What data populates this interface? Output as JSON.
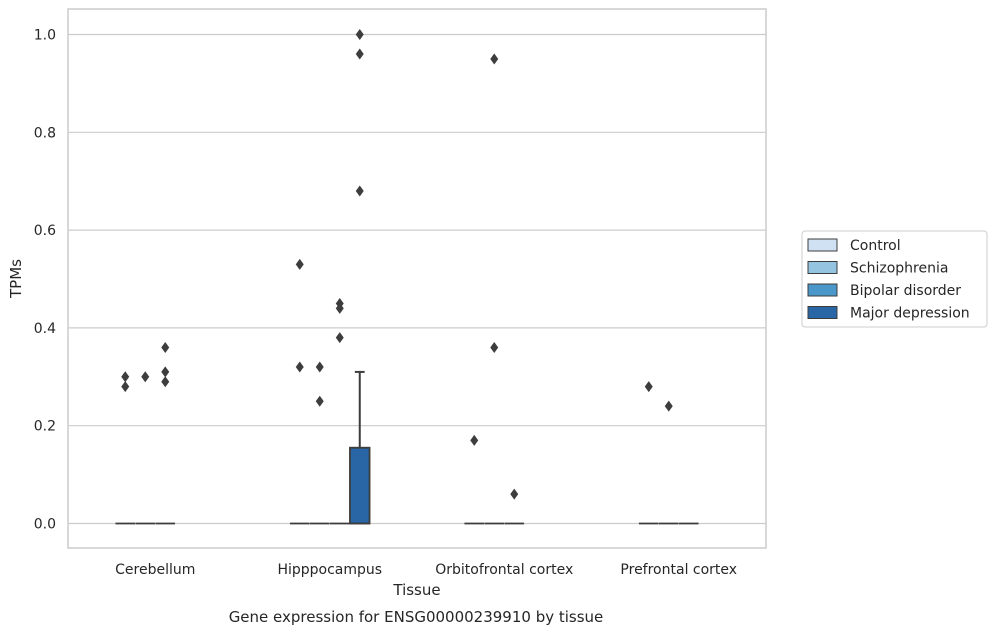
{
  "chart_data": {
    "type": "box",
    "xlabel": "Tissue",
    "ylabel": "TPMs",
    "caption": "Gene expression for ENSG00000239910 by tissue",
    "ylim": [
      -0.05,
      1.05
    ],
    "yticks": [
      0.0,
      0.2,
      0.4,
      0.6,
      0.8,
      1.0
    ],
    "ytick_labels": [
      "0.0",
      "0.2",
      "0.4",
      "0.6",
      "0.8",
      "1.0"
    ],
    "grid": true,
    "legend_position": "right",
    "categories": [
      "Cerebellum",
      "Hipppocampus",
      "Orbitofrontal cortex",
      "Prefrontal cortex"
    ],
    "hue_order": [
      "Control",
      "Schizophrenia",
      "Bipolar disorder",
      "Major depression"
    ],
    "colors": {
      "Control": "#cfe1f2",
      "Schizophrenia": "#94c4df",
      "Bipolar disorder": "#4a98c9",
      "Major depression": "#2866a6"
    },
    "boxes": [
      {
        "category": "Cerebellum",
        "group": "Control",
        "q1": 0,
        "median": 0,
        "q3": 0,
        "whisker_low": 0,
        "whisker_high": 0,
        "outliers": [
          0.3,
          0.28
        ]
      },
      {
        "category": "Cerebellum",
        "group": "Schizophrenia",
        "q1": 0,
        "median": 0,
        "q3": 0,
        "whisker_low": 0,
        "whisker_high": 0,
        "outliers": [
          0.3
        ]
      },
      {
        "category": "Cerebellum",
        "group": "Bipolar disorder",
        "q1": 0,
        "median": 0,
        "q3": 0,
        "whisker_low": 0,
        "whisker_high": 0,
        "outliers": [
          0.36,
          0.31,
          0.29
        ]
      },
      {
        "category": "Hipppocampus",
        "group": "Control",
        "q1": 0,
        "median": 0,
        "q3": 0,
        "whisker_low": 0,
        "whisker_high": 0,
        "outliers": [
          0.53,
          0.32
        ]
      },
      {
        "category": "Hipppocampus",
        "group": "Schizophrenia",
        "q1": 0,
        "median": 0,
        "q3": 0,
        "whisker_low": 0,
        "whisker_high": 0,
        "outliers": [
          0.32,
          0.25
        ]
      },
      {
        "category": "Hipppocampus",
        "group": "Bipolar disorder",
        "q1": 0,
        "median": 0,
        "q3": 0,
        "whisker_low": 0,
        "whisker_high": 0,
        "outliers": [
          0.45,
          0.44,
          0.38
        ]
      },
      {
        "category": "Hipppocampus",
        "group": "Major depression",
        "q1": 0,
        "median": 0,
        "q3": 0.155,
        "whisker_low": 0,
        "whisker_high": 0.31,
        "outliers": [
          1.0,
          0.96,
          0.68
        ]
      },
      {
        "category": "Orbitofrontal cortex",
        "group": "Control",
        "q1": 0,
        "median": 0,
        "q3": 0,
        "whisker_low": 0,
        "whisker_high": 0,
        "outliers": [
          0.17
        ]
      },
      {
        "category": "Orbitofrontal cortex",
        "group": "Schizophrenia",
        "q1": 0,
        "median": 0,
        "q3": 0,
        "whisker_low": 0,
        "whisker_high": 0,
        "outliers": [
          0.95,
          0.36
        ]
      },
      {
        "category": "Orbitofrontal cortex",
        "group": "Bipolar disorder",
        "q1": 0,
        "median": 0,
        "q3": 0,
        "whisker_low": 0,
        "whisker_high": 0,
        "outliers": [
          0.06
        ]
      },
      {
        "category": "Prefrontal cortex",
        "group": "Control",
        "q1": 0,
        "median": 0,
        "q3": 0,
        "whisker_low": 0,
        "whisker_high": 0,
        "outliers": [
          0.28
        ]
      },
      {
        "category": "Prefrontal cortex",
        "group": "Schizophrenia",
        "q1": 0,
        "median": 0,
        "q3": 0,
        "whisker_low": 0,
        "whisker_high": 0,
        "outliers": [
          0.24
        ]
      },
      {
        "category": "Prefrontal cortex",
        "group": "Bipolar disorder",
        "q1": 0,
        "median": 0,
        "q3": 0,
        "whisker_low": 0,
        "whisker_high": 0,
        "outliers": []
      }
    ]
  }
}
